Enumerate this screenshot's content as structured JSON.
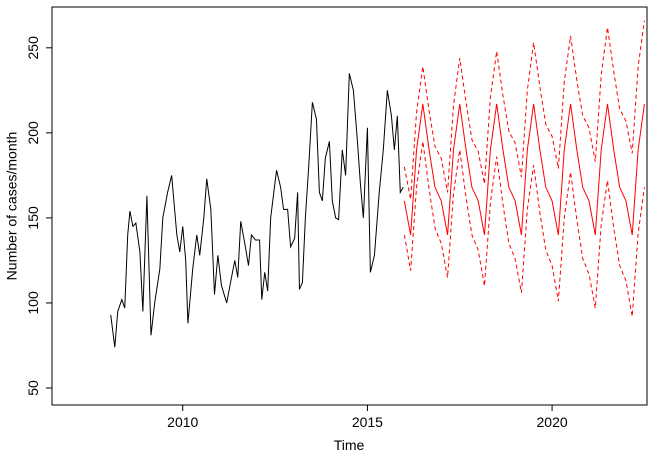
{
  "chart_data": {
    "type": "line",
    "xlabel": "Time",
    "ylabel": "Number of cases/month",
    "xlim": [
      2006.46,
      2022.57
    ],
    "ylim": [
      40,
      274
    ],
    "xticks": [
      2010,
      2015,
      2020
    ],
    "yticks": [
      50,
      100,
      150,
      200,
      250
    ],
    "series": [
      {
        "color": "#000000",
        "dashed": false,
        "x": [
          2008.05,
          2008.16,
          2008.24,
          2008.35,
          2008.43,
          2008.51,
          2008.57,
          2008.65,
          2008.73,
          2008.84,
          2008.92,
          2009.03,
          2009.14,
          2009.24,
          2009.38,
          2009.46,
          2009.59,
          2009.7,
          2009.84,
          2009.92,
          2010,
          2010.08,
          2010.14,
          2010.27,
          2010.38,
          2010.46,
          2010.57,
          2010.65,
          2010.76,
          2010.86,
          2010.95,
          2011.05,
          2011.19,
          2011.32,
          2011.41,
          2011.49,
          2011.57,
          2011.68,
          2011.78,
          2011.86,
          2011.97,
          2012.08,
          2012.14,
          2012.22,
          2012.3,
          2012.38,
          2012.54,
          2012.65,
          2012.73,
          2012.84,
          2012.92,
          2013.03,
          2013.11,
          2013.16,
          2013.24,
          2013.32,
          2013.41,
          2013.51,
          2013.62,
          2013.7,
          2013.78,
          2013.86,
          2013.97,
          2014.05,
          2014.14,
          2014.22,
          2014.32,
          2014.41,
          2014.51,
          2014.62,
          2014.73,
          2014.81,
          2014.89,
          2015,
          2015.08,
          2015.19,
          2015.32,
          2015.43,
          2015.54,
          2015.65,
          2015.73,
          2015.81,
          2015.89,
          2015.97
        ],
        "values": [
          93,
          74,
          95,
          102,
          97,
          140,
          154,
          145,
          147,
          130,
          95,
          163,
          81,
          100,
          120,
          150,
          165,
          175,
          140,
          130,
          145,
          125,
          88,
          120,
          140,
          128,
          150,
          173,
          155,
          105,
          128,
          110,
          100,
          115,
          125,
          115,
          148,
          135,
          122,
          140,
          137,
          137,
          102,
          118,
          107,
          150,
          178,
          168,
          155,
          155,
          133,
          138,
          165,
          108,
          112,
          150,
          180,
          218,
          208,
          165,
          160,
          185,
          195,
          160,
          150,
          149,
          190,
          175,
          235,
          225,
          195,
          170,
          150,
          203,
          118,
          128,
          165,
          190,
          225,
          210,
          190,
          210,
          165,
          168
        ]
      },
      {
        "color": "#ff0000",
        "dashed": false,
        "x": [
          2016,
          2016.17,
          2016.33,
          2016.5,
          2016.67,
          2016.83,
          2017,
          2017.17,
          2017.33,
          2017.5,
          2017.67,
          2017.83,
          2018,
          2018.17,
          2018.33,
          2018.5,
          2018.67,
          2018.83,
          2019,
          2019.17,
          2019.33,
          2019.5,
          2019.67,
          2019.83,
          2020,
          2020.17,
          2020.33,
          2020.5,
          2020.67,
          2020.83,
          2021,
          2021.17,
          2021.33,
          2021.5,
          2021.67,
          2021.83,
          2022,
          2022.17,
          2022.33,
          2022.5
        ],
        "values": [
          160,
          140,
          190,
          217,
          190,
          168,
          160,
          140,
          190,
          217,
          190,
          168,
          160,
          140,
          190,
          217,
          190,
          168,
          160,
          140,
          190,
          217,
          190,
          168,
          160,
          140,
          190,
          217,
          190,
          168,
          160,
          140,
          190,
          217,
          190,
          168,
          160,
          140,
          190,
          217
        ]
      },
      {
        "color": "#ff0000",
        "dashed": true,
        "x": [
          2016,
          2016.17,
          2016.33,
          2016.5,
          2016.67,
          2016.83,
          2017,
          2017.17,
          2017.33,
          2017.5,
          2017.67,
          2017.83,
          2018,
          2018.17,
          2018.33,
          2018.5,
          2018.67,
          2018.83,
          2019,
          2019.17,
          2019.33,
          2019.5,
          2019.67,
          2019.83,
          2020,
          2020.17,
          2020.33,
          2020.5,
          2020.67,
          2020.83,
          2021,
          2021.17,
          2021.33,
          2021.5,
          2021.67,
          2021.83,
          2022,
          2022.17,
          2022.33,
          2022.5
        ],
        "values": [
          180,
          161,
          212,
          239,
          213,
          192,
          185,
          165,
          216,
          244,
          218,
          196,
          189,
          170,
          221,
          248,
          222,
          201,
          194,
          174,
          225,
          253,
          227,
          205,
          198,
          179,
          230,
          257,
          231,
          210,
          203,
          183,
          234,
          262,
          236,
          214,
          207,
          188,
          239,
          266
        ]
      },
      {
        "color": "#ff0000",
        "dashed": true,
        "x": [
          2016,
          2016.17,
          2016.33,
          2016.5,
          2016.67,
          2016.83,
          2017,
          2017.17,
          2017.33,
          2017.5,
          2017.67,
          2017.83,
          2018,
          2018.17,
          2018.33,
          2018.5,
          2018.67,
          2018.83,
          2019,
          2019.17,
          2019.33,
          2019.5,
          2019.67,
          2019.83,
          2020,
          2020.17,
          2020.33,
          2020.5,
          2020.67,
          2020.83,
          2021,
          2021.17,
          2021.33,
          2021.5,
          2021.67,
          2021.83,
          2022,
          2022.17,
          2022.33,
          2022.5
        ],
        "values": [
          140,
          119,
          168,
          195,
          167,
          144,
          135,
          115,
          164,
          190,
          162,
          140,
          131,
          110,
          159,
          186,
          158,
          135,
          126,
          106,
          155,
          181,
          153,
          131,
          122,
          101,
          150,
          177,
          149,
          126,
          117,
          97,
          146,
          172,
          144,
          122,
          113,
          92,
          141,
          168
        ]
      }
    ]
  }
}
